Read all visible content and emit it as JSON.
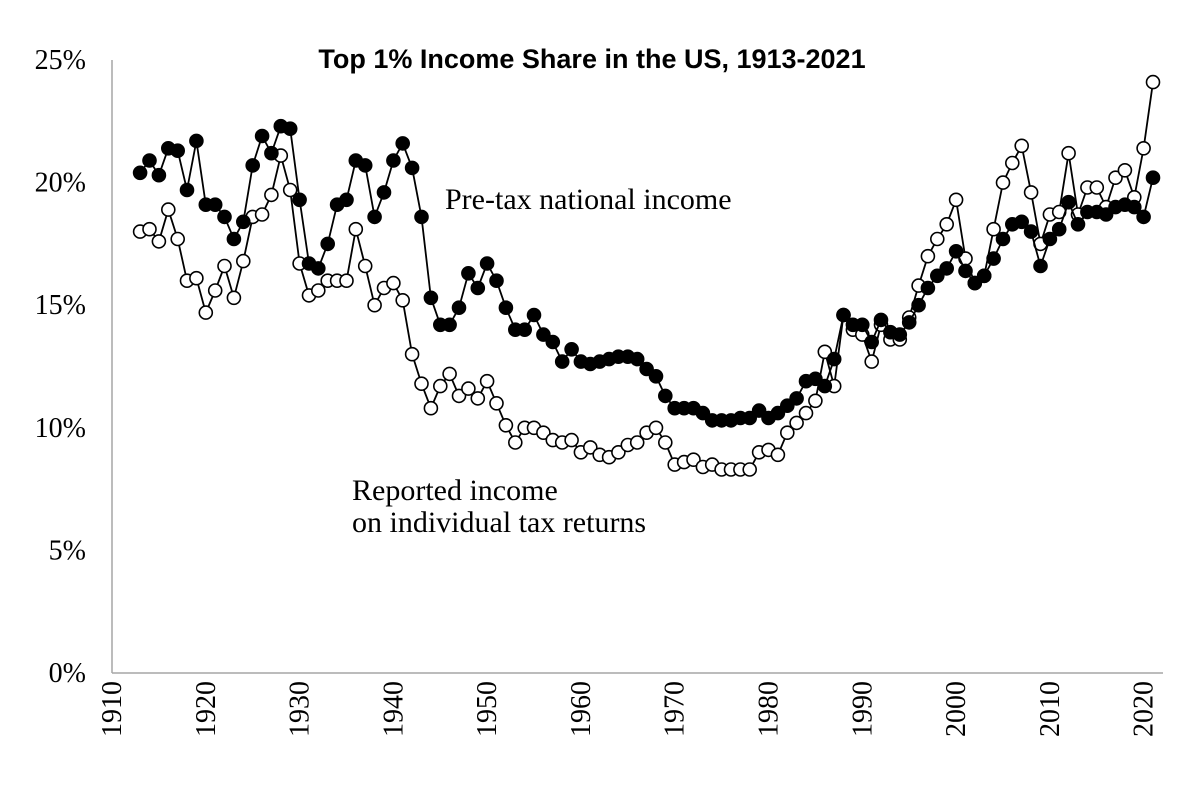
{
  "chart_data": {
    "type": "line",
    "title": "Top 1% Income Share in the US, 1913-2021",
    "xlabel": "",
    "ylabel": "",
    "xlim": [
      1910,
      2022
    ],
    "ylim": [
      0,
      25
    ],
    "grid": false,
    "legend": "none",
    "x_ticks": [
      "1910",
      "1920",
      "1930",
      "1940",
      "1950",
      "1960",
      "1970",
      "1980",
      "1990",
      "2000",
      "2010",
      "2020"
    ],
    "y_ticks": [
      "0%",
      "5%",
      "10%",
      "15%",
      "20%",
      "25%"
    ],
    "annotations": {
      "pretax_label": "Pre-tax national income",
      "reported_line1": "Reported income",
      "reported_line2": "on individual tax returns"
    },
    "series": [
      {
        "marker": "filled-circle",
        "color": "#000000",
        "x": [
          1913,
          1914,
          1915,
          1916,
          1917,
          1918,
          1919,
          1920,
          1921,
          1922,
          1923,
          1924,
          1925,
          1926,
          1927,
          1928,
          1929,
          1930,
          1931,
          1932,
          1933,
          1934,
          1935,
          1936,
          1937,
          1938,
          1939,
          1940,
          1941,
          1942,
          1943,
          1944,
          1945,
          1946,
          1947,
          1948,
          1949,
          1950,
          1951,
          1952,
          1953,
          1954,
          1955,
          1956,
          1957,
          1958,
          1959,
          1960,
          1961,
          1962,
          1963,
          1964,
          1965,
          1966,
          1967,
          1968,
          1969,
          1970,
          1971,
          1972,
          1973,
          1974,
          1975,
          1976,
          1977,
          1978,
          1979,
          1980,
          1981,
          1982,
          1983,
          1984,
          1985,
          1986,
          1987,
          1988,
          1989,
          1990,
          1991,
          1992,
          1993,
          1994,
          1995,
          1996,
          1997,
          1998,
          1999,
          2000,
          2001,
          2002,
          2003,
          2004,
          2005,
          2006,
          2007,
          2008,
          2009,
          2010,
          2011,
          2012,
          2013,
          2014,
          2015,
          2016,
          2017,
          2018,
          2019,
          2020,
          2021
        ],
        "y": [
          20.4,
          20.9,
          20.3,
          21.4,
          21.3,
          19.7,
          21.7,
          19.1,
          19.1,
          18.6,
          17.7,
          18.4,
          20.7,
          21.9,
          21.2,
          22.3,
          22.2,
          19.3,
          16.7,
          16.5,
          17.5,
          19.1,
          19.3,
          20.9,
          20.7,
          18.6,
          19.6,
          20.9,
          21.6,
          20.6,
          18.6,
          15.3,
          14.2,
          14.2,
          14.9,
          16.3,
          15.7,
          16.7,
          16.0,
          14.9,
          14.0,
          14.0,
          14.6,
          13.8,
          13.5,
          12.7,
          13.2,
          12.7,
          12.6,
          12.7,
          12.8,
          12.9,
          12.9,
          12.8,
          12.4,
          12.1,
          11.3,
          10.8,
          10.8,
          10.8,
          10.6,
          10.3,
          10.3,
          10.3,
          10.4,
          10.4,
          10.7,
          10.4,
          10.6,
          10.9,
          11.2,
          11.9,
          12.0,
          11.7,
          12.8,
          14.6,
          14.2,
          14.2,
          13.5,
          14.4,
          13.9,
          13.8,
          14.3,
          15.0,
          15.7,
          16.2,
          16.5,
          17.2,
          16.4,
          15.9,
          16.2,
          16.9,
          17.7,
          18.3,
          18.4,
          18.0,
          16.6,
          17.7,
          18.1,
          19.2,
          18.3,
          18.8,
          18.8,
          18.7,
          19.0,
          19.1,
          19.0,
          18.6,
          20.2
        ]
      },
      {
        "marker": "open-circle",
        "color": "#000000",
        "x": [
          1913,
          1914,
          1915,
          1916,
          1917,
          1918,
          1919,
          1920,
          1921,
          1922,
          1923,
          1924,
          1925,
          1926,
          1927,
          1928,
          1929,
          1930,
          1931,
          1932,
          1933,
          1934,
          1935,
          1936,
          1937,
          1938,
          1939,
          1940,
          1941,
          1942,
          1943,
          1944,
          1945,
          1946,
          1947,
          1948,
          1949,
          1950,
          1951,
          1952,
          1953,
          1954,
          1955,
          1956,
          1957,
          1958,
          1959,
          1960,
          1961,
          1962,
          1963,
          1964,
          1965,
          1966,
          1967,
          1968,
          1969,
          1970,
          1971,
          1972,
          1973,
          1974,
          1975,
          1976,
          1977,
          1978,
          1979,
          1980,
          1981,
          1982,
          1983,
          1984,
          1985,
          1986,
          1987,
          1988,
          1989,
          1990,
          1991,
          1992,
          1993,
          1994,
          1995,
          1996,
          1997,
          1998,
          1999,
          2000,
          2001,
          2002,
          2003,
          2004,
          2005,
          2006,
          2007,
          2008,
          2009,
          2010,
          2011,
          2012,
          2013,
          2014,
          2015,
          2016,
          2017,
          2018,
          2019,
          2020,
          2021
        ],
        "y": [
          18.0,
          18.1,
          17.6,
          18.9,
          17.7,
          16.0,
          16.1,
          14.7,
          15.6,
          16.6,
          15.3,
          16.8,
          18.6,
          18.7,
          19.5,
          21.1,
          19.7,
          16.7,
          15.4,
          15.6,
          16.0,
          16.0,
          16.0,
          18.1,
          16.6,
          15.0,
          15.7,
          15.9,
          15.2,
          13.0,
          11.8,
          10.8,
          11.7,
          12.2,
          11.3,
          11.6,
          11.2,
          11.9,
          11.0,
          10.1,
          9.4,
          10.0,
          10.0,
          9.8,
          9.5,
          9.4,
          9.5,
          9.0,
          9.2,
          8.9,
          8.8,
          9.0,
          9.3,
          9.4,
          9.8,
          10.0,
          9.4,
          8.5,
          8.6,
          8.7,
          8.4,
          8.5,
          8.3,
          8.3,
          8.3,
          8.3,
          9.0,
          9.1,
          8.9,
          9.8,
          10.2,
          10.6,
          11.1,
          13.1,
          11.7,
          14.6,
          14.0,
          13.8,
          12.7,
          14.2,
          13.6,
          13.6,
          14.5,
          15.8,
          17.0,
          17.7,
          18.3,
          19.3,
          16.9,
          15.9,
          16.2,
          18.1,
          20.0,
          20.8,
          21.5,
          19.6,
          17.5,
          18.7,
          18.8,
          21.2,
          18.7,
          19.8,
          19.8,
          19.0,
          20.2,
          20.5,
          19.4,
          21.4,
          24.1
        ]
      }
    ]
  }
}
